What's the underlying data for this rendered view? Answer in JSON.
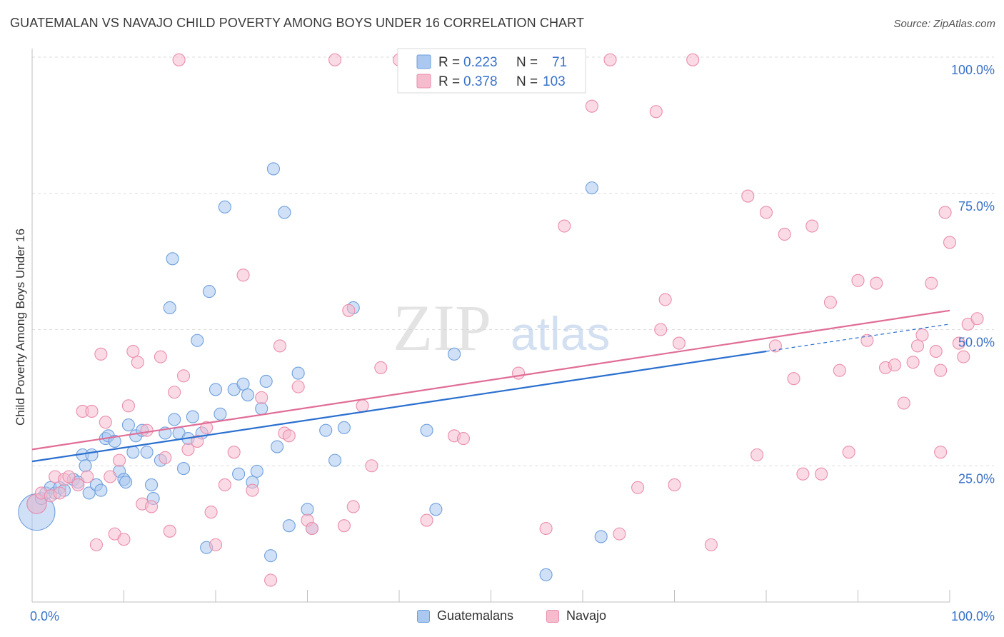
{
  "title": "GUATEMALAN VS NAVAJO CHILD POVERTY AMONG BOYS UNDER 16 CORRELATION CHART",
  "source": "Source: ZipAtlas.com",
  "watermark": {
    "zip": "ZIP",
    "atlas": "atlas"
  },
  "colors": {
    "blue_fill": "#aac8f0",
    "blue_stroke": "#6f9fdc",
    "blue_line": "#2a6fcf",
    "pink_fill": "#f6bccd",
    "pink_stroke": "#ea8eac",
    "pink_line": "#e06d96",
    "axis_label": "#3a72c8",
    "grid": "#dddddd"
  },
  "legend": {
    "rows": [
      {
        "r_label": "R = ",
        "r_value": "0.223",
        "n_label": "N = ",
        "n_value": "71"
      },
      {
        "r_label": "R = ",
        "r_value": "0.378",
        "n_label": "N = ",
        "n_value": "103"
      }
    ]
  },
  "bottom_legend": [
    "Guatemalans",
    "Navajo"
  ],
  "chart_data": {
    "type": "scatter",
    "title": "GUATEMALAN VS NAVAJO CHILD POVERTY AMONG BOYS UNDER 16 CORRELATION CHART",
    "xlabel": "",
    "ylabel": "Child Poverty Among Boys Under 16",
    "xlim": [
      0,
      100
    ],
    "ylim": [
      0,
      105
    ],
    "x_tick_labels": [
      "0.0%",
      "100.0%"
    ],
    "y_tick_labels": [
      {
        "value": 25,
        "label": "25.0%"
      },
      {
        "value": 50,
        "label": "50.0%"
      },
      {
        "value": 75,
        "label": "75.0%"
      },
      {
        "value": 100,
        "label": "100.0%"
      }
    ],
    "grid": true,
    "series": [
      {
        "name": "Guatemalans",
        "R": 0.223,
        "N": 71,
        "trend": {
          "x0": 0,
          "y0": 25.8,
          "x1": 80,
          "y1": 46.0,
          "dash_to_x": 100,
          "dash_to_y": 51.0
        },
        "points": [
          [
            0.5,
            16.5,
            3
          ],
          [
            0.5,
            18,
            1.6
          ],
          [
            1,
            19,
            1
          ],
          [
            1.5,
            20,
            1
          ],
          [
            2,
            21,
            1
          ],
          [
            2.5,
            20,
            1
          ],
          [
            3,
            21,
            1
          ],
          [
            3.5,
            20.5,
            1
          ],
          [
            4.5,
            22.5,
            1
          ],
          [
            5,
            22,
            1
          ],
          [
            5.5,
            27,
            1
          ],
          [
            5.8,
            25,
            1
          ],
          [
            6.2,
            20,
            1
          ],
          [
            6.5,
            27,
            1
          ],
          [
            7,
            21.5,
            1
          ],
          [
            7.5,
            20.5,
            1
          ],
          [
            8,
            30,
            1
          ],
          [
            8.3,
            30.5,
            1
          ],
          [
            9,
            29.5,
            1
          ],
          [
            9.5,
            24,
            1
          ],
          [
            10,
            22.5,
            1
          ],
          [
            10.2,
            22,
            1
          ],
          [
            10.5,
            32.5,
            1
          ],
          [
            11,
            27.5,
            1
          ],
          [
            11.3,
            30.5,
            1
          ],
          [
            12,
            31.5,
            1
          ],
          [
            12.5,
            27.5,
            1
          ],
          [
            13,
            21.5,
            1
          ],
          [
            13.2,
            19,
            1
          ],
          [
            14,
            26,
            1
          ],
          [
            14.5,
            31,
            1
          ],
          [
            15,
            54,
            1
          ],
          [
            15.3,
            63,
            1
          ],
          [
            15.5,
            33.5,
            1
          ],
          [
            16,
            31,
            1
          ],
          [
            16.5,
            24.5,
            1
          ],
          [
            17,
            30,
            1
          ],
          [
            17.5,
            34,
            1
          ],
          [
            18,
            48,
            1
          ],
          [
            18.5,
            31,
            1
          ],
          [
            19,
            10,
            1
          ],
          [
            19.3,
            57,
            1
          ],
          [
            20,
            39,
            1
          ],
          [
            20.5,
            34.5,
            1
          ],
          [
            21,
            72.5,
            1
          ],
          [
            22,
            39,
            1
          ],
          [
            22.5,
            23.5,
            1
          ],
          [
            23,
            40,
            1
          ],
          [
            23.5,
            38,
            1
          ],
          [
            24,
            22,
            1
          ],
          [
            24.5,
            24,
            1
          ],
          [
            25,
            35.5,
            1
          ],
          [
            25.5,
            40.5,
            1
          ],
          [
            26,
            8.5,
            1
          ],
          [
            26.3,
            79.5,
            1
          ],
          [
            26.7,
            28.5,
            1
          ],
          [
            27.5,
            71.5,
            1
          ],
          [
            28,
            14,
            1
          ],
          [
            29,
            42,
            1
          ],
          [
            30,
            17,
            1
          ],
          [
            30.5,
            13.5,
            1
          ],
          [
            32,
            31.5,
            1
          ],
          [
            33,
            26,
            1
          ],
          [
            34,
            32,
            1
          ],
          [
            35,
            54,
            1
          ],
          [
            43,
            31.5,
            1
          ],
          [
            44,
            17,
            1
          ],
          [
            46,
            45.5,
            1
          ],
          [
            56,
            5,
            1
          ],
          [
            61,
            76,
            1
          ],
          [
            62,
            12,
            1
          ]
        ]
      },
      {
        "name": "Navajo",
        "R": 0.378,
        "N": 103,
        "trend": {
          "x0": 0,
          "y0": 28.0,
          "x1": 100,
          "y1": 53.5
        },
        "points": [
          [
            0.5,
            18,
            1.6
          ],
          [
            1,
            20,
            1
          ],
          [
            2,
            19.5,
            1
          ],
          [
            2.5,
            23,
            1
          ],
          [
            3,
            20,
            1
          ],
          [
            3.5,
            22.5,
            1
          ],
          [
            4,
            23,
            1
          ],
          [
            5,
            21.5,
            1
          ],
          [
            5.5,
            35,
            1
          ],
          [
            6,
            23,
            1
          ],
          [
            6.5,
            35,
            1
          ],
          [
            7,
            10.5,
            1
          ],
          [
            7.5,
            45.5,
            1
          ],
          [
            8,
            33,
            1
          ],
          [
            8.5,
            23,
            1
          ],
          [
            9,
            12.5,
            1
          ],
          [
            9.5,
            26,
            1
          ],
          [
            10,
            11.5,
            1
          ],
          [
            10.5,
            36,
            1
          ],
          [
            11,
            46,
            1
          ],
          [
            11.5,
            44,
            1
          ],
          [
            12,
            18,
            1
          ],
          [
            12.5,
            31.5,
            1
          ],
          [
            13,
            17.5,
            1
          ],
          [
            14,
            45,
            1
          ],
          [
            14.5,
            26.5,
            1
          ],
          [
            15,
            13,
            1
          ],
          [
            15.5,
            38.5,
            1
          ],
          [
            16,
            99.5,
            1
          ],
          [
            16.5,
            41.5,
            1
          ],
          [
            17,
            28,
            1
          ],
          [
            18,
            29.5,
            1
          ],
          [
            19,
            32,
            1
          ],
          [
            19.5,
            16.5,
            1
          ],
          [
            20,
            10.5,
            1
          ],
          [
            21,
            21.5,
            1
          ],
          [
            22,
            27.5,
            1
          ],
          [
            23,
            60,
            1
          ],
          [
            24,
            20.5,
            1
          ],
          [
            25,
            37.5,
            1
          ],
          [
            26,
            4,
            1
          ],
          [
            27,
            47,
            1
          ],
          [
            27.5,
            31,
            1
          ],
          [
            28,
            30.5,
            1
          ],
          [
            29,
            39.5,
            1
          ],
          [
            30,
            15,
            1
          ],
          [
            30.5,
            13.5,
            1
          ],
          [
            33,
            99.5,
            1
          ],
          [
            34,
            14,
            1
          ],
          [
            34.5,
            53.5,
            1
          ],
          [
            35,
            17.5,
            1
          ],
          [
            36,
            36,
            1
          ],
          [
            37,
            25,
            1
          ],
          [
            38,
            43,
            1
          ],
          [
            40,
            99.5,
            1
          ],
          [
            43,
            15,
            1
          ],
          [
            46,
            30.5,
            1
          ],
          [
            47,
            30,
            1
          ],
          [
            53,
            42,
            1
          ],
          [
            56,
            13.5,
            1
          ],
          [
            58,
            69,
            1
          ],
          [
            61,
            91,
            1
          ],
          [
            63,
            99.5,
            1
          ],
          [
            64,
            12.5,
            1
          ],
          [
            66,
            21,
            1
          ],
          [
            68,
            90,
            1
          ],
          [
            68.5,
            50,
            1
          ],
          [
            69,
            55.5,
            1
          ],
          [
            70,
            21.5,
            1
          ],
          [
            70.5,
            47.5,
            1
          ],
          [
            72,
            99.5,
            1
          ],
          [
            74,
            10.5,
            1
          ],
          [
            78,
            74.5,
            1
          ],
          [
            79,
            27,
            1
          ],
          [
            80,
            71.5,
            1
          ],
          [
            81,
            47,
            1
          ],
          [
            82,
            67.5,
            1
          ],
          [
            83,
            41,
            1
          ],
          [
            84,
            23.5,
            1
          ],
          [
            85,
            69,
            1
          ],
          [
            86,
            23.5,
            1
          ],
          [
            87,
            55,
            1
          ],
          [
            88,
            42.5,
            1
          ],
          [
            89,
            27.5,
            1
          ],
          [
            90,
            59,
            1
          ],
          [
            91,
            48,
            1
          ],
          [
            92,
            58.5,
            1
          ],
          [
            93,
            43,
            1
          ],
          [
            94,
            43.5,
            1
          ],
          [
            95,
            36.5,
            1
          ],
          [
            96,
            44,
            1
          ],
          [
            97,
            49,
            1
          ],
          [
            98,
            58.5,
            1
          ],
          [
            98.5,
            46,
            1
          ],
          [
            99,
            42.5,
            1
          ],
          [
            99.5,
            71.5,
            1
          ],
          [
            100,
            66,
            1
          ],
          [
            101,
            47.5,
            1
          ],
          [
            101.5,
            45,
            1
          ],
          [
            102,
            51,
            1
          ],
          [
            96.5,
            47,
            1
          ],
          [
            99,
            27.5,
            1
          ],
          [
            103,
            52,
            1
          ]
        ]
      }
    ]
  }
}
